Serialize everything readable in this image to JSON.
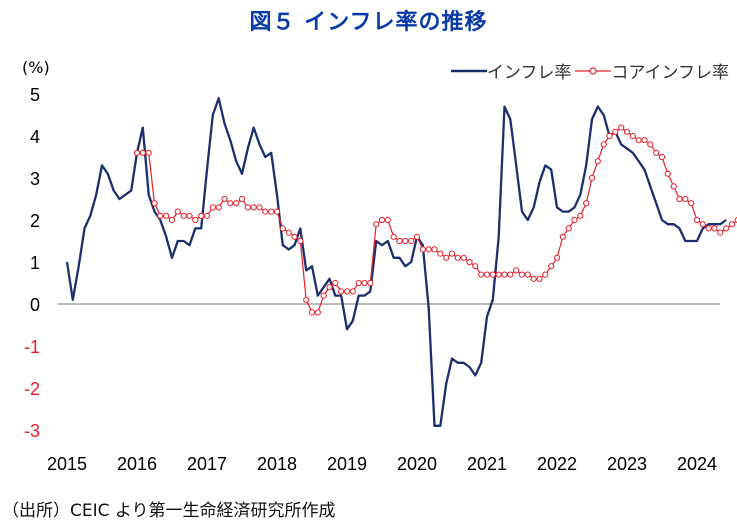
{
  "title": "図５ インフレ率の推移",
  "source": "（出所）CEIC より第一生命経済研究所作成",
  "colors": {
    "inflation": "#1a2f6b",
    "core": "#e8202a",
    "title": "#0a3aa8"
  },
  "chart_data": {
    "type": "line",
    "title": "図５ インフレ率の推移",
    "ylabel": "(%)",
    "xlabel": "",
    "ylim": [
      -3,
      5
    ],
    "yticks": [
      "5",
      "4",
      "3",
      "2",
      "1",
      "0",
      "-1",
      "-2",
      "-3"
    ],
    "xticks": [
      "2015",
      "2016",
      "2017",
      "2018",
      "2019",
      "2020",
      "2021",
      "2022",
      "2023",
      "2024"
    ],
    "legend_position": "top-right",
    "start": "2015-01",
    "frequency": "monthly",
    "series": [
      {
        "name": "インフレ率",
        "marker": "none",
        "values": [
          1.0,
          0.1,
          0.9,
          1.8,
          2.1,
          2.6,
          3.3,
          3.1,
          2.7,
          2.5,
          2.6,
          2.7,
          3.6,
          4.2,
          2.6,
          2.2,
          2.0,
          1.6,
          1.1,
          1.5,
          1.5,
          1.4,
          1.8,
          1.8,
          3.2,
          4.5,
          4.9,
          4.3,
          3.9,
          3.4,
          3.1,
          3.7,
          4.2,
          3.8,
          3.5,
          3.6,
          2.6,
          1.4,
          1.3,
          1.4,
          1.8,
          0.8,
          0.9,
          0.2,
          0.4,
          0.6,
          0.2,
          0.2,
          -0.6,
          -0.4,
          0.2,
          0.2,
          0.3,
          1.5,
          1.4,
          1.5,
          1.1,
          1.1,
          0.9,
          1.0,
          1.6,
          1.4,
          -0.1,
          -2.9,
          -2.9,
          -1.9,
          -1.3,
          -1.4,
          -1.4,
          -1.5,
          -1.7,
          -1.4,
          -0.3,
          0.1,
          1.6,
          4.7,
          4.4,
          3.3,
          2.2,
          2.0,
          2.3,
          2.9,
          3.3,
          3.2,
          2.3,
          2.2,
          2.2,
          2.3,
          2.6,
          3.3,
          4.4,
          4.7,
          4.5,
          4.0,
          4.1,
          3.8,
          3.7,
          3.6,
          3.4,
          3.2,
          2.8,
          2.4,
          2.0,
          1.9,
          1.9,
          1.8,
          1.5,
          1.5,
          1.5,
          1.8,
          1.9,
          1.9,
          1.9,
          2.0
        ]
      },
      {
        "name": "コアインフレ率",
        "marker": "circle",
        "values": [
          null,
          null,
          null,
          null,
          null,
          null,
          null,
          null,
          null,
          null,
          null,
          null,
          3.6,
          3.6,
          3.6,
          2.4,
          2.1,
          2.1,
          2.0,
          2.2,
          2.1,
          2.1,
          2.0,
          2.1,
          2.1,
          2.3,
          2.3,
          2.5,
          2.4,
          2.4,
          2.5,
          2.3,
          2.3,
          2.3,
          2.2,
          2.2,
          2.2,
          1.8,
          1.7,
          1.6,
          1.5,
          0.1,
          -0.2,
          -0.2,
          0.2,
          0.4,
          0.5,
          0.3,
          0.3,
          0.3,
          0.5,
          0.5,
          0.5,
          1.9,
          2.0,
          2.0,
          1.6,
          1.5,
          1.5,
          1.5,
          1.6,
          1.3,
          1.3,
          1.3,
          1.2,
          1.1,
          1.2,
          1.1,
          1.1,
          1.0,
          0.9,
          0.7,
          0.7,
          0.7,
          0.7,
          0.7,
          0.7,
          0.8,
          0.7,
          0.7,
          0.6,
          0.6,
          0.7,
          0.9,
          1.1,
          1.6,
          1.8,
          2.0,
          2.1,
          2.4,
          3.0,
          3.4,
          3.8,
          4.0,
          4.1,
          4.2,
          4.1,
          4.0,
          3.9,
          3.9,
          3.8,
          3.6,
          3.5,
          3.1,
          2.8,
          2.5,
          2.5,
          2.4,
          2.0,
          1.9,
          1.8,
          1.8,
          1.7,
          1.8,
          1.9,
          2.0,
          2.0,
          1.9
        ]
      }
    ]
  }
}
